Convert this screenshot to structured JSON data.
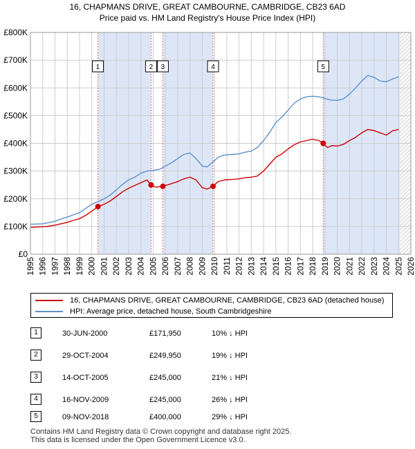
{
  "title_line1": "16, CHAPMANS DRIVE, GREAT CAMBOURNE, CAMBRIDGE, CB23 6AD",
  "title_line2": "Price paid vs. HM Land Registry's House Price Index (HPI)",
  "colors": {
    "property_line": "#cc0000",
    "hpi_line": "#5b8fd0",
    "shade": "#dde6f7",
    "grid": "#cccccc",
    "marker_vline": "#e07070"
  },
  "chart_data": {
    "type": "line",
    "xlim": [
      1995,
      2026
    ],
    "ylim": [
      0,
      800000
    ],
    "x_ticks": [
      "1995",
      "1996",
      "1997",
      "1998",
      "1999",
      "2000",
      "2001",
      "2002",
      "2003",
      "2004",
      "2005",
      "2006",
      "2007",
      "2008",
      "2009",
      "2010",
      "2011",
      "2012",
      "2013",
      "2014",
      "2015",
      "2016",
      "2017",
      "2018",
      "2019",
      "2020",
      "2021",
      "2022",
      "2023",
      "2024",
      "2025",
      "2026"
    ],
    "y_ticks": [
      {
        "value": 0,
        "label": "£0"
      },
      {
        "value": 100000,
        "label": "£100K"
      },
      {
        "value": 200000,
        "label": "£200K"
      },
      {
        "value": 300000,
        "label": "£300K"
      },
      {
        "value": 400000,
        "label": "£400K"
      },
      {
        "value": 500000,
        "label": "£500K"
      },
      {
        "value": 600000,
        "label": "£600K"
      },
      {
        "value": 700000,
        "label": "£700K"
      },
      {
        "value": 800000,
        "label": "£800K"
      }
    ],
    "grid": true,
    "shaded_ranges": [
      [
        2000.5,
        2004.83
      ],
      [
        2005.79,
        2009.88
      ],
      [
        2018.86,
        2025.1
      ]
    ],
    "hatched_after": 2025.1,
    "series": [
      {
        "name": "16, CHAPMANS DRIVE, GREAT CAMBOURNE, CAMBRIDGE, CB23 6AD (detached house)",
        "color": "#cc0000",
        "points": [
          [
            1995.0,
            97000
          ],
          [
            1995.5,
            98000
          ],
          [
            1996.0,
            99000
          ],
          [
            1996.5,
            101000
          ],
          [
            1997.0,
            105000
          ],
          [
            1997.5,
            110000
          ],
          [
            1998.0,
            115000
          ],
          [
            1998.5,
            122000
          ],
          [
            1999.0,
            128000
          ],
          [
            1999.5,
            140000
          ],
          [
            2000.0,
            155000
          ],
          [
            2000.5,
            171950
          ],
          [
            2001.0,
            180000
          ],
          [
            2001.5,
            192000
          ],
          [
            2002.0,
            208000
          ],
          [
            2002.5,
            225000
          ],
          [
            2003.0,
            238000
          ],
          [
            2003.5,
            248000
          ],
          [
            2004.0,
            258000
          ],
          [
            2004.5,
            268000
          ],
          [
            2004.83,
            249950
          ],
          [
            2005.2,
            242000
          ],
          [
            2005.79,
            245000
          ],
          [
            2006.3,
            252000
          ],
          [
            2007.0,
            262000
          ],
          [
            2007.5,
            272000
          ],
          [
            2008.0,
            278000
          ],
          [
            2008.5,
            268000
          ],
          [
            2009.0,
            240000
          ],
          [
            2009.4,
            235000
          ],
          [
            2009.88,
            245000
          ],
          [
            2010.3,
            262000
          ],
          [
            2010.8,
            268000
          ],
          [
            2011.5,
            270000
          ],
          [
            2012.0,
            272000
          ],
          [
            2012.5,
            276000
          ],
          [
            2013.0,
            278000
          ],
          [
            2013.5,
            282000
          ],
          [
            2014.0,
            300000
          ],
          [
            2014.5,
            325000
          ],
          [
            2015.0,
            350000
          ],
          [
            2015.5,
            362000
          ],
          [
            2016.0,
            380000
          ],
          [
            2016.5,
            395000
          ],
          [
            2017.0,
            405000
          ],
          [
            2017.5,
            410000
          ],
          [
            2018.0,
            415000
          ],
          [
            2018.5,
            410000
          ],
          [
            2018.86,
            400000
          ],
          [
            2019.2,
            385000
          ],
          [
            2019.6,
            392000
          ],
          [
            2020.0,
            390000
          ],
          [
            2020.5,
            396000
          ],
          [
            2021.0,
            410000
          ],
          [
            2021.5,
            422000
          ],
          [
            2022.0,
            438000
          ],
          [
            2022.5,
            450000
          ],
          [
            2023.0,
            446000
          ],
          [
            2023.5,
            438000
          ],
          [
            2024.0,
            430000
          ],
          [
            2024.5,
            445000
          ],
          [
            2025.0,
            450000
          ]
        ]
      },
      {
        "name": "HPI: Average price, detached house, South Cambridgeshire",
        "color": "#5b8fd0",
        "points": [
          [
            1995.0,
            108000
          ],
          [
            1995.5,
            109000
          ],
          [
            1996.0,
            110000
          ],
          [
            1996.5,
            114000
          ],
          [
            1997.0,
            119000
          ],
          [
            1997.5,
            127000
          ],
          [
            1998.0,
            134000
          ],
          [
            1998.5,
            142000
          ],
          [
            1999.0,
            150000
          ],
          [
            1999.5,
            165000
          ],
          [
            2000.0,
            180000
          ],
          [
            2000.5,
            190000
          ],
          [
            2001.0,
            200000
          ],
          [
            2001.5,
            213000
          ],
          [
            2002.0,
            232000
          ],
          [
            2002.5,
            252000
          ],
          [
            2003.0,
            268000
          ],
          [
            2003.5,
            278000
          ],
          [
            2004.0,
            292000
          ],
          [
            2004.5,
            300000
          ],
          [
            2005.0,
            302000
          ],
          [
            2005.5,
            306000
          ],
          [
            2006.0,
            318000
          ],
          [
            2006.5,
            330000
          ],
          [
            2007.0,
            345000
          ],
          [
            2007.5,
            360000
          ],
          [
            2008.0,
            365000
          ],
          [
            2008.5,
            345000
          ],
          [
            2009.0,
            318000
          ],
          [
            2009.4,
            315000
          ],
          [
            2009.8,
            330000
          ],
          [
            2010.3,
            350000
          ],
          [
            2010.8,
            358000
          ],
          [
            2011.5,
            360000
          ],
          [
            2012.0,
            362000
          ],
          [
            2012.5,
            368000
          ],
          [
            2013.0,
            372000
          ],
          [
            2013.5,
            385000
          ],
          [
            2014.0,
            410000
          ],
          [
            2014.5,
            440000
          ],
          [
            2015.0,
            475000
          ],
          [
            2015.5,
            495000
          ],
          [
            2016.0,
            520000
          ],
          [
            2016.5,
            545000
          ],
          [
            2017.0,
            560000
          ],
          [
            2017.5,
            568000
          ],
          [
            2018.0,
            570000
          ],
          [
            2018.5,
            568000
          ],
          [
            2019.0,
            562000
          ],
          [
            2019.5,
            556000
          ],
          [
            2020.0,
            555000
          ],
          [
            2020.5,
            560000
          ],
          [
            2021.0,
            578000
          ],
          [
            2021.5,
            600000
          ],
          [
            2022.0,
            625000
          ],
          [
            2022.5,
            645000
          ],
          [
            2023.0,
            638000
          ],
          [
            2023.5,
            625000
          ],
          [
            2024.0,
            622000
          ],
          [
            2024.5,
            632000
          ],
          [
            2025.0,
            640000
          ]
        ]
      }
    ],
    "sales": [
      {
        "label": "1",
        "x": 2000.5,
        "y": 171950
      },
      {
        "label": "2",
        "x": 2004.83,
        "y": 249950
      },
      {
        "label": "3",
        "x": 2005.79,
        "y": 245000
      },
      {
        "label": "4",
        "x": 2009.88,
        "y": 245000
      },
      {
        "label": "5",
        "x": 2018.86,
        "y": 400000
      }
    ]
  },
  "legend": {
    "property": "16, CHAPMANS DRIVE, GREAT CAMBOURNE, CAMBRIDGE, CB23 6AD (detached house)",
    "hpi": "HPI: Average price, detached house, South Cambridgeshire"
  },
  "transactions": [
    {
      "num": "1",
      "date": "30-JUN-2000",
      "price": "£171,950",
      "hpi": "10% ↓ HPI"
    },
    {
      "num": "2",
      "date": "29-OCT-2004",
      "price": "£249,950",
      "hpi": "19% ↓ HPI"
    },
    {
      "num": "3",
      "date": "14-OCT-2005",
      "price": "£245,000",
      "hpi": "21% ↓ HPI"
    },
    {
      "num": "4",
      "date": "16-NOV-2009",
      "price": "£245,000",
      "hpi": "26% ↓ HPI"
    },
    {
      "num": "5",
      "date": "09-NOV-2018",
      "price": "£400,000",
      "hpi": "29% ↓ HPI"
    }
  ],
  "footer_line1": "Contains HM Land Registry data © Crown copyright and database right 2025.",
  "footer_line2": "This data is licensed under the Open Government Licence v3.0."
}
